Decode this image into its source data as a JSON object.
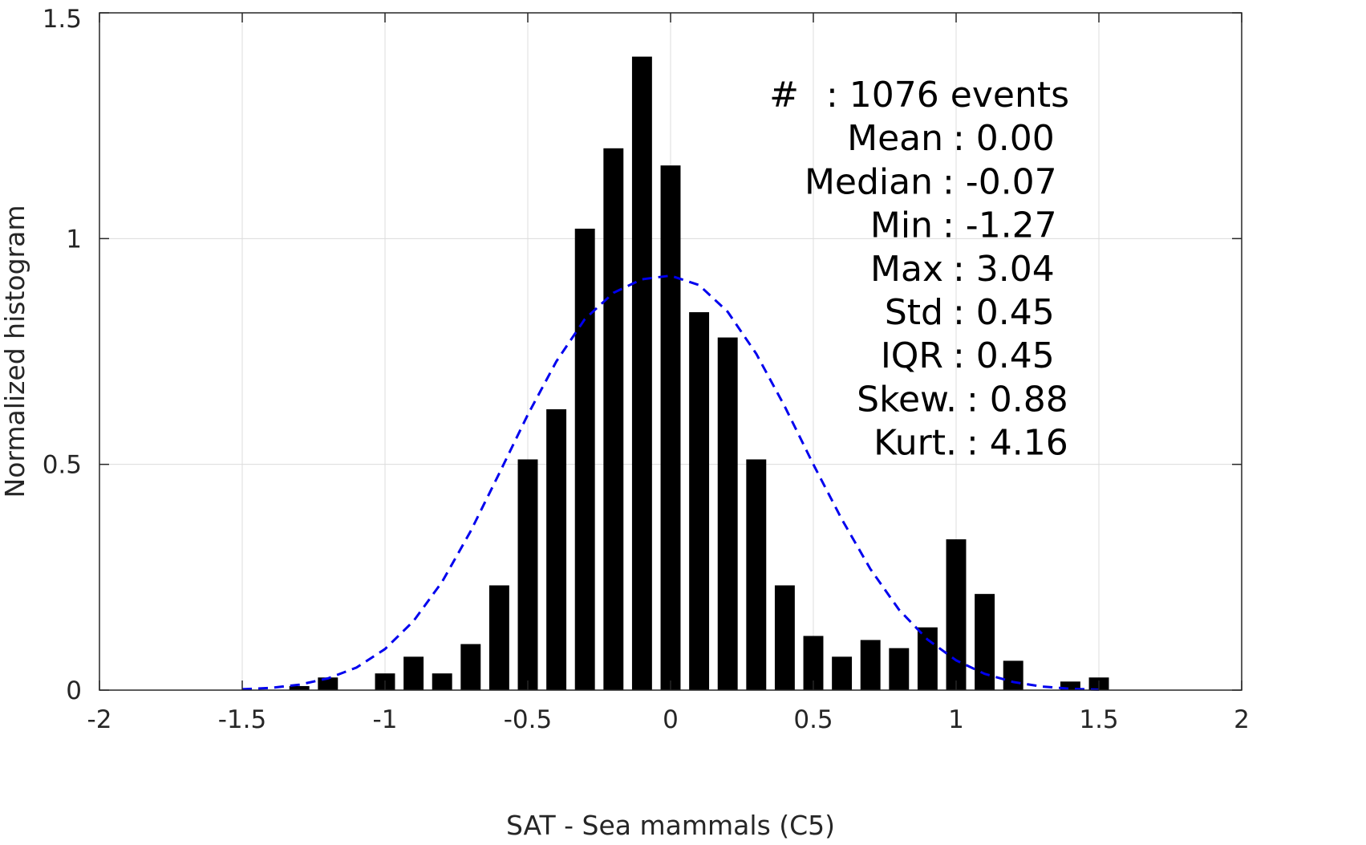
{
  "chart_data": {
    "type": "bar",
    "xlabel": "SAT - Sea mammals (C5)",
    "ylabel": "Normalized histogram",
    "xlim": [
      -2,
      2
    ],
    "ylim": [
      0,
      1.5
    ],
    "xticks": [
      -2,
      -1.5,
      -1,
      -0.5,
      0,
      0.5,
      1,
      1.5,
      2
    ],
    "yticks": [
      0,
      0.5,
      1,
      1.5
    ],
    "xtick_labels": [
      "-2",
      "-1.5",
      "-1",
      "-0.5",
      "0",
      "0.5",
      "1",
      "1.5",
      "2"
    ],
    "ytick_labels": [
      "0",
      "0.5",
      "1",
      "1.5"
    ],
    "grid": true,
    "bar_width": 0.07,
    "bars": [
      {
        "x": -1.3,
        "y": 0.009
      },
      {
        "x": -1.2,
        "y": 0.028
      },
      {
        "x": -1.0,
        "y": 0.037
      },
      {
        "x": -0.9,
        "y": 0.074
      },
      {
        "x": -0.8,
        "y": 0.037
      },
      {
        "x": -0.7,
        "y": 0.102
      },
      {
        "x": -0.6,
        "y": 0.232
      },
      {
        "x": -0.5,
        "y": 0.511
      },
      {
        "x": -0.4,
        "y": 0.622
      },
      {
        "x": -0.3,
        "y": 1.022
      },
      {
        "x": -0.2,
        "y": 1.2
      },
      {
        "x": -0.1,
        "y": 1.403
      },
      {
        "x": 0.0,
        "y": 1.162
      },
      {
        "x": 0.1,
        "y": 0.837
      },
      {
        "x": 0.2,
        "y": 0.781
      },
      {
        "x": 0.3,
        "y": 0.511
      },
      {
        "x": 0.4,
        "y": 0.232
      },
      {
        "x": 0.5,
        "y": 0.12
      },
      {
        "x": 0.6,
        "y": 0.074
      },
      {
        "x": 0.7,
        "y": 0.111
      },
      {
        "x": 0.8,
        "y": 0.093
      },
      {
        "x": 0.9,
        "y": 0.139
      },
      {
        "x": 1.0,
        "y": 0.334
      },
      {
        "x": 1.1,
        "y": 0.213
      },
      {
        "x": 1.2,
        "y": 0.065
      },
      {
        "x": 1.4,
        "y": 0.019
      },
      {
        "x": 1.5,
        "y": 0.028
      }
    ],
    "fit_curve": {
      "style": "dashed",
      "color": "#0000ee",
      "points": [
        [
          -1.5,
          0.002
        ],
        [
          -1.4,
          0.005
        ],
        [
          -1.3,
          0.012
        ],
        [
          -1.2,
          0.026
        ],
        [
          -1.1,
          0.05
        ],
        [
          -1.0,
          0.091
        ],
        [
          -0.9,
          0.153
        ],
        [
          -0.8,
          0.24
        ],
        [
          -0.7,
          0.352
        ],
        [
          -0.6,
          0.48
        ],
        [
          -0.5,
          0.61
        ],
        [
          -0.4,
          0.728
        ],
        [
          -0.3,
          0.822
        ],
        [
          -0.2,
          0.88
        ],
        [
          -0.1,
          0.91
        ],
        [
          0.0,
          0.918
        ],
        [
          0.1,
          0.897
        ],
        [
          0.2,
          0.838
        ],
        [
          0.3,
          0.745
        ],
        [
          0.4,
          0.628
        ],
        [
          0.5,
          0.5
        ],
        [
          0.6,
          0.378
        ],
        [
          0.7,
          0.268
        ],
        [
          0.8,
          0.178
        ],
        [
          0.9,
          0.112
        ],
        [
          1.0,
          0.066
        ],
        [
          1.1,
          0.036
        ],
        [
          1.2,
          0.018
        ],
        [
          1.3,
          0.008
        ],
        [
          1.4,
          0.003
        ],
        [
          1.5,
          0.001
        ]
      ]
    },
    "colors": {
      "bars": "#000000",
      "fit": "#0000ee",
      "grid": "#dcdcdc",
      "axis": "#262626"
    },
    "annotation_lines": [
      {
        "left": "#",
        "right": ": 1076 events"
      },
      {
        "left": "Mean",
        "right": ": 0.00"
      },
      {
        "left": "Median",
        "right": ": -0.07"
      },
      {
        "left": "Min",
        "right": ": -1.27"
      },
      {
        "left": "Max",
        "right": ": 3.04"
      },
      {
        "left": "Std",
        "right": ": 0.45"
      },
      {
        "left": "IQR",
        "right": ": 0.45"
      },
      {
        "left": "Skew.",
        "right": ": 0.88"
      },
      {
        "left": "Kurt.",
        "right": ": 4.16"
      }
    ]
  }
}
